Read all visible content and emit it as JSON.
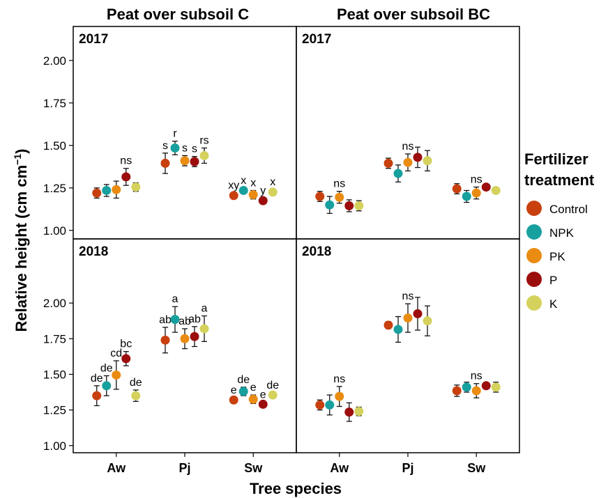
{
  "chart_data": {
    "type": "scatter",
    "subtype": "point-with-error-bars, faceted 2x2",
    "facet_columns": [
      "Peat over subsoil C",
      "Peat over subsoil BC"
    ],
    "facet_rows": [
      "2017",
      "2018"
    ],
    "categories": [
      "Aw",
      "Pj",
      "Sw"
    ],
    "xlabel": "Tree species",
    "ylabel": "Relative height (cm cm⁻¹)",
    "ylabel_main": "Relative height (cm cm",
    "ylabel_sup": "−1",
    "ylabel_end": ")",
    "yticks": [
      "1.00",
      "1.25",
      "1.50",
      "1.75",
      "2.00"
    ],
    "ylim_row": [
      [
        0.95,
        2.2
      ],
      [
        0.95,
        2.45
      ]
    ],
    "legend": {
      "title_line1": "Fertilizer",
      "title_line2": "treatment",
      "placement": "right",
      "items": [
        {
          "name": "Control",
          "color": "#c8400e"
        },
        {
          "name": "NPK",
          "color": "#17a09e"
        },
        {
          "name": "PK",
          "color": "#ea8c12"
        },
        {
          "name": "P",
          "color": "#9c0d0d"
        },
        {
          "name": "K",
          "color": "#d4d25c"
        }
      ]
    },
    "panels": [
      {
        "row": 0,
        "col": 0,
        "tag": "2017",
        "series": [
          {
            "name": "Control",
            "values": [
              1.22,
              1.395,
              1.205
            ],
            "err": [
              0.03,
              0.06,
              0.015
            ],
            "labels": [
              "",
              "s",
              "xy"
            ]
          },
          {
            "name": "NPK",
            "values": [
              1.235,
              1.485,
              1.235
            ],
            "err": [
              0.035,
              0.04,
              0.015
            ],
            "labels": [
              "",
              "r",
              "x"
            ]
          },
          {
            "name": "PK",
            "values": [
              1.24,
              1.41,
              1.21
            ],
            "err": [
              0.05,
              0.03,
              0.025
            ],
            "labels": [
              "",
              "s",
              "x"
            ]
          },
          {
            "name": "P",
            "values": [
              1.315,
              1.405,
              1.175
            ],
            "err": [
              0.05,
              0.03,
              0.015
            ],
            "labels": [
              "ns",
              "s",
              "y"
            ]
          },
          {
            "name": "K",
            "values": [
              1.255,
              1.44,
              1.225
            ],
            "err": [
              0.025,
              0.045,
              0.015
            ],
            "labels": [
              "",
              "rs",
              "x"
            ]
          }
        ]
      },
      {
        "row": 0,
        "col": 1,
        "tag": "2017",
        "series": [
          {
            "name": "Control",
            "values": [
              1.2,
              1.395,
              1.245
            ],
            "err": [
              0.03,
              0.03,
              0.03
            ],
            "labels": [
              "",
              "",
              ""
            ]
          },
          {
            "name": "NPK",
            "values": [
              1.15,
              1.335,
              1.2
            ],
            "err": [
              0.05,
              0.05,
              0.035
            ],
            "labels": [
              "",
              "",
              ""
            ]
          },
          {
            "name": "PK",
            "values": [
              1.195,
              1.4,
              1.22
            ],
            "err": [
              0.035,
              0.05,
              0.035
            ],
            "labels": [
              "ns",
              "ns",
              "ns"
            ]
          },
          {
            "name": "P",
            "values": [
              1.145,
              1.43,
              1.255
            ],
            "err": [
              0.035,
              0.06,
              0.015
            ],
            "labels": [
              "",
              "",
              ""
            ]
          },
          {
            "name": "K",
            "values": [
              1.145,
              1.41,
              1.235
            ],
            "err": [
              0.03,
              0.06,
              0.015
            ],
            "labels": [
              "",
              "",
              ""
            ]
          }
        ]
      },
      {
        "row": 1,
        "col": 0,
        "tag": "2018",
        "series": [
          {
            "name": "Control",
            "values": [
              1.35,
              1.74,
              1.32
            ],
            "err": [
              0.07,
              0.09,
              0.015
            ],
            "labels": [
              "de",
              "ab",
              "e"
            ]
          },
          {
            "name": "NPK",
            "values": [
              1.42,
              1.885,
              1.38
            ],
            "err": [
              0.07,
              0.09,
              0.03
            ],
            "labels": [
              "de",
              "a",
              "de"
            ]
          },
          {
            "name": "PK",
            "values": [
              1.495,
              1.75,
              1.325
            ],
            "err": [
              0.1,
              0.07,
              0.03
            ],
            "labels": [
              "cd",
              "ab",
              "e"
            ]
          },
          {
            "name": "P",
            "values": [
              1.61,
              1.765,
              1.29
            ],
            "err": [
              0.05,
              0.07,
              0.015
            ],
            "labels": [
              "bc",
              "ab",
              "e"
            ]
          },
          {
            "name": "K",
            "values": [
              1.35,
              1.82,
              1.355
            ],
            "err": [
              0.04,
              0.09,
              0.015
            ],
            "labels": [
              "de",
              "a",
              "de"
            ]
          }
        ]
      },
      {
        "row": 1,
        "col": 1,
        "tag": "2018",
        "series": [
          {
            "name": "Control",
            "values": [
              1.285,
              1.845,
              1.385
            ],
            "err": [
              0.035,
              0.025,
              0.04
            ],
            "labels": [
              "",
              "",
              ""
            ]
          },
          {
            "name": "NPK",
            "values": [
              1.285,
              1.815,
              1.41
            ],
            "err": [
              0.07,
              0.09,
              0.035
            ],
            "labels": [
              "",
              "",
              ""
            ]
          },
          {
            "name": "PK",
            "values": [
              1.345,
              1.895,
              1.385
            ],
            "err": [
              0.07,
              0.1,
              0.05
            ],
            "labels": [
              "ns",
              "ns",
              "ns"
            ]
          },
          {
            "name": "P",
            "values": [
              1.235,
              1.925,
              1.42
            ],
            "err": [
              0.065,
              0.115,
              0.02
            ],
            "labels": [
              "",
              "",
              ""
            ]
          },
          {
            "name": "K",
            "values": [
              1.24,
              1.875,
              1.41
            ],
            "err": [
              0.03,
              0.105,
              0.035
            ],
            "labels": [
              "",
              "",
              ""
            ]
          }
        ]
      }
    ]
  }
}
